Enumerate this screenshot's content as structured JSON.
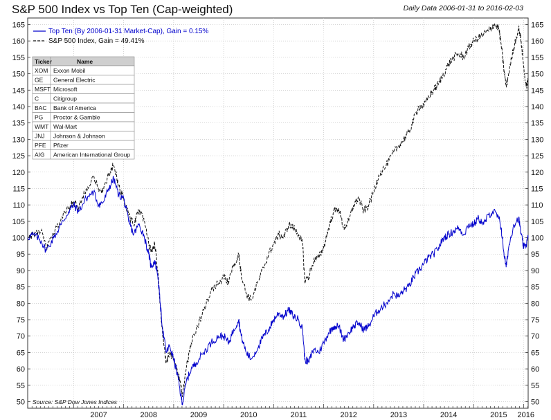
{
  "chart_data": {
    "type": "line",
    "title": "S&P 500 Index vs Top Ten (Cap-weighted)",
    "subtitle": "Daily Data 2006-01-31 to 2016-02-03",
    "source": "Source: S&P Dow Jones Indices",
    "xlim": [
      2006.08,
      2016.09
    ],
    "ylim": [
      48,
      167
    ],
    "x_ticks": [
      2007,
      2008,
      2009,
      2010,
      2011,
      2012,
      2013,
      2014,
      2015,
      2016
    ],
    "y_ticks": [
      50,
      55,
      60,
      65,
      70,
      75,
      80,
      85,
      90,
      95,
      100,
      105,
      110,
      115,
      120,
      125,
      130,
      135,
      140,
      145,
      150,
      155,
      160,
      165
    ],
    "grid": true,
    "legend_position": "top-left",
    "series": [
      {
        "name": "Top Ten (By 2006-01-31 Market-Cap), Gain = 0.15%",
        "color": "#0000cc",
        "dash": "solid",
        "points": [
          [
            2006.08,
            100
          ],
          [
            2006.2,
            101
          ],
          [
            2006.35,
            99
          ],
          [
            2006.45,
            96
          ],
          [
            2006.6,
            100
          ],
          [
            2006.75,
            104
          ],
          [
            2006.9,
            108
          ],
          [
            2007.0,
            110
          ],
          [
            2007.1,
            108
          ],
          [
            2007.25,
            112
          ],
          [
            2007.4,
            114
          ],
          [
            2007.5,
            110
          ],
          [
            2007.6,
            111
          ],
          [
            2007.7,
            115
          ],
          [
            2007.8,
            118
          ],
          [
            2007.9,
            113
          ],
          [
            2008.0,
            112
          ],
          [
            2008.1,
            105
          ],
          [
            2008.2,
            101
          ],
          [
            2008.3,
            104
          ],
          [
            2008.4,
            101
          ],
          [
            2008.5,
            95
          ],
          [
            2008.55,
            91
          ],
          [
            2008.62,
            93
          ],
          [
            2008.68,
            89
          ],
          [
            2008.73,
            80
          ],
          [
            2008.78,
            72
          ],
          [
            2008.85,
            65
          ],
          [
            2008.92,
            67
          ],
          [
            2009.0,
            63
          ],
          [
            2009.08,
            58
          ],
          [
            2009.14,
            52
          ],
          [
            2009.18,
            49.5
          ],
          [
            2009.25,
            56
          ],
          [
            2009.35,
            60
          ],
          [
            2009.45,
            62
          ],
          [
            2009.6,
            65
          ],
          [
            2009.75,
            68
          ],
          [
            2009.9,
            70
          ],
          [
            2010.0,
            70
          ],
          [
            2010.1,
            68
          ],
          [
            2010.2,
            72
          ],
          [
            2010.3,
            75
          ],
          [
            2010.35,
            70
          ],
          [
            2010.45,
            65
          ],
          [
            2010.55,
            63
          ],
          [
            2010.7,
            67
          ],
          [
            2010.8,
            70
          ],
          [
            2010.9,
            72
          ],
          [
            2011.0,
            75
          ],
          [
            2011.1,
            77
          ],
          [
            2011.2,
            76
          ],
          [
            2011.3,
            78
          ],
          [
            2011.4,
            76
          ],
          [
            2011.5,
            75
          ],
          [
            2011.58,
            72
          ],
          [
            2011.62,
            63
          ],
          [
            2011.7,
            62
          ],
          [
            2011.8,
            66
          ],
          [
            2011.9,
            65
          ],
          [
            2012.0,
            68
          ],
          [
            2012.1,
            71
          ],
          [
            2012.2,
            73
          ],
          [
            2012.3,
            73
          ],
          [
            2012.4,
            69
          ],
          [
            2012.5,
            71
          ],
          [
            2012.6,
            73
          ],
          [
            2012.7,
            74
          ],
          [
            2012.8,
            72
          ],
          [
            2012.9,
            73
          ],
          [
            2013.0,
            76
          ],
          [
            2013.1,
            78
          ],
          [
            2013.25,
            80
          ],
          [
            2013.4,
            83
          ],
          [
            2013.5,
            82
          ],
          [
            2013.6,
            84
          ],
          [
            2013.7,
            85
          ],
          [
            2013.8,
            88
          ],
          [
            2013.9,
            90
          ],
          [
            2014.0,
            92
          ],
          [
            2014.1,
            94
          ],
          [
            2014.2,
            95
          ],
          [
            2014.3,
            97
          ],
          [
            2014.4,
            100
          ],
          [
            2014.5,
            101
          ],
          [
            2014.6,
            102
          ],
          [
            2014.7,
            103
          ],
          [
            2014.8,
            101
          ],
          [
            2014.9,
            104
          ],
          [
            2015.0,
            104
          ],
          [
            2015.1,
            106
          ],
          [
            2015.2,
            104
          ],
          [
            2015.3,
            107
          ],
          [
            2015.4,
            108
          ],
          [
            2015.5,
            106
          ],
          [
            2015.55,
            103
          ],
          [
            2015.6,
            96
          ],
          [
            2015.65,
            91
          ],
          [
            2015.7,
            97
          ],
          [
            2015.8,
            104
          ],
          [
            2015.9,
            106
          ],
          [
            2015.95,
            101
          ],
          [
            2016.0,
            97
          ],
          [
            2016.05,
            98
          ],
          [
            2016.09,
            100
          ]
        ]
      },
      {
        "name": "S&P 500 Index, Gain = 49.41%",
        "color": "#111111",
        "dash": "dashed",
        "points": [
          [
            2006.08,
            100
          ],
          [
            2006.2,
            101
          ],
          [
            2006.35,
            102
          ],
          [
            2006.45,
            97
          ],
          [
            2006.6,
            101
          ],
          [
            2006.75,
            106
          ],
          [
            2006.9,
            109
          ],
          [
            2007.0,
            111
          ],
          [
            2007.1,
            109
          ],
          [
            2007.25,
            115
          ],
          [
            2007.4,
            119
          ],
          [
            2007.5,
            114
          ],
          [
            2007.6,
            115
          ],
          [
            2007.7,
            119
          ],
          [
            2007.8,
            122
          ],
          [
            2007.9,
            116
          ],
          [
            2008.0,
            112
          ],
          [
            2008.1,
            107
          ],
          [
            2008.2,
            104
          ],
          [
            2008.3,
            108
          ],
          [
            2008.4,
            106
          ],
          [
            2008.5,
            98
          ],
          [
            2008.55,
            96
          ],
          [
            2008.62,
            98
          ],
          [
            2008.68,
            90
          ],
          [
            2008.73,
            80
          ],
          [
            2008.78,
            70
          ],
          [
            2008.85,
            62
          ],
          [
            2008.92,
            65
          ],
          [
            2009.0,
            63
          ],
          [
            2009.08,
            59
          ],
          [
            2009.14,
            55
          ],
          [
            2009.18,
            52
          ],
          [
            2009.25,
            60
          ],
          [
            2009.35,
            68
          ],
          [
            2009.45,
            72
          ],
          [
            2009.6,
            78
          ],
          [
            2009.75,
            84
          ],
          [
            2009.9,
            86
          ],
          [
            2010.0,
            88
          ],
          [
            2010.1,
            86
          ],
          [
            2010.2,
            92
          ],
          [
            2010.3,
            95
          ],
          [
            2010.35,
            89
          ],
          [
            2010.45,
            83
          ],
          [
            2010.55,
            81
          ],
          [
            2010.7,
            87
          ],
          [
            2010.8,
            91
          ],
          [
            2010.9,
            95
          ],
          [
            2011.0,
            98
          ],
          [
            2011.1,
            101
          ],
          [
            2011.2,
            100
          ],
          [
            2011.3,
            104
          ],
          [
            2011.4,
            103
          ],
          [
            2011.5,
            101
          ],
          [
            2011.58,
            98
          ],
          [
            2011.62,
            87
          ],
          [
            2011.7,
            88
          ],
          [
            2011.8,
            93
          ],
          [
            2011.9,
            94
          ],
          [
            2012.0,
            97
          ],
          [
            2012.1,
            103
          ],
          [
            2012.2,
            108
          ],
          [
            2012.3,
            109
          ],
          [
            2012.4,
            103
          ],
          [
            2012.5,
            105
          ],
          [
            2012.6,
            110
          ],
          [
            2012.7,
            112
          ],
          [
            2012.8,
            108
          ],
          [
            2012.9,
            110
          ],
          [
            2013.0,
            114
          ],
          [
            2013.1,
            119
          ],
          [
            2013.25,
            122
          ],
          [
            2013.4,
            126
          ],
          [
            2013.5,
            128
          ],
          [
            2013.6,
            130
          ],
          [
            2013.7,
            132
          ],
          [
            2013.8,
            136
          ],
          [
            2013.9,
            140
          ],
          [
            2014.0,
            140
          ],
          [
            2014.1,
            143
          ],
          [
            2014.2,
            145
          ],
          [
            2014.3,
            147
          ],
          [
            2014.4,
            150
          ],
          [
            2014.5,
            153
          ],
          [
            2014.6,
            155
          ],
          [
            2014.7,
            156
          ],
          [
            2014.8,
            155
          ],
          [
            2014.9,
            158
          ],
          [
            2015.0,
            160
          ],
          [
            2015.1,
            161
          ],
          [
            2015.2,
            162
          ],
          [
            2015.3,
            163
          ],
          [
            2015.4,
            165
          ],
          [
            2015.5,
            164
          ],
          [
            2015.55,
            159
          ],
          [
            2015.6,
            152
          ],
          [
            2015.65,
            146
          ],
          [
            2015.7,
            150
          ],
          [
            2015.8,
            158
          ],
          [
            2015.9,
            164
          ],
          [
            2015.95,
            160
          ],
          [
            2016.0,
            152
          ],
          [
            2016.05,
            146
          ],
          [
            2016.09,
            148
          ]
        ]
      }
    ]
  },
  "ticker_table": {
    "headers": [
      "Ticker",
      "Name"
    ],
    "rows": [
      [
        "XOM",
        "Exxon Mobil"
      ],
      [
        "GE",
        "General Electric"
      ],
      [
        "MSFT",
        "Microsoft"
      ],
      [
        "C",
        "Citigroup"
      ],
      [
        "BAC",
        "Bank of America"
      ],
      [
        "PG",
        "Proctor & Gamble"
      ],
      [
        "WMT",
        "Wal-Mart"
      ],
      [
        "JNJ",
        "Johnson & Johnson"
      ],
      [
        "PFE",
        "Pfizer"
      ],
      [
        "AIG",
        "American International Group"
      ]
    ]
  }
}
